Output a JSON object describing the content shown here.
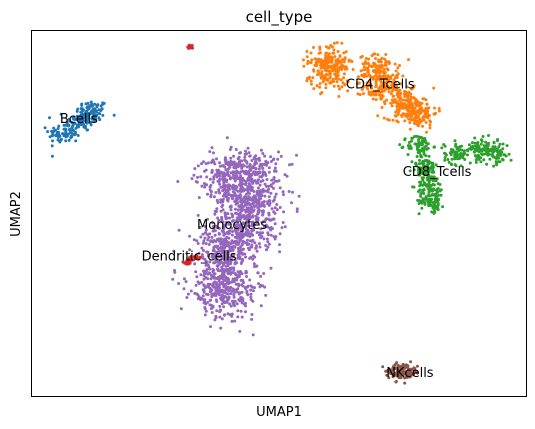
{
  "chart_data": {
    "type": "scatter",
    "title": "cell_type",
    "xlabel": "UMAP1",
    "ylabel": "UMAP2",
    "grid": false,
    "legend": "on data",
    "xlim": [
      0,
      100
    ],
    "ylim": [
      0,
      100
    ],
    "clusters": [
      {
        "name": "Bcells",
        "color": "#1f77b4",
        "label_at": [
          9.5,
          76.0
        ],
        "centers": [
          [
            12.2,
            78.0
          ],
          [
            10.0,
            75.5
          ],
          [
            6.6,
            72.0
          ]
        ],
        "spread": [
          1.6,
          1.5
        ],
        "count": 220
      },
      {
        "name": "CD4_Tcells",
        "color": "#ff7f0e",
        "label_at": [
          70.5,
          85.5
        ],
        "centers": [
          [
            60.0,
            92.0
          ],
          [
            60.3,
            87.8
          ],
          [
            70.2,
            89.5
          ],
          [
            71.0,
            84.5
          ],
          [
            75.5,
            80.0
          ],
          [
            78.0,
            77.5
          ]
        ],
        "spread": [
          2.0,
          2.0
        ],
        "count": 700
      },
      {
        "name": "CD8_Tcells",
        "color": "#2ca02c",
        "label_at": [
          82.0,
          61.5
        ],
        "centers": [
          [
            78.5,
            68.5
          ],
          [
            79.5,
            62.5
          ],
          [
            80.5,
            57.5
          ],
          [
            81.0,
            53.5
          ],
          [
            86.0,
            66.5
          ],
          [
            91.0,
            67.5
          ],
          [
            94.0,
            66.5
          ]
        ],
        "spread": [
          1.3,
          1.5
        ],
        "count": 500
      },
      {
        "name": "Monocytes",
        "color": "#9467bd",
        "label_at": [
          40.5,
          47.0
        ],
        "centers": [
          [
            44.0,
            55.0
          ],
          [
            40.0,
            59.5
          ],
          [
            43.5,
            62.5
          ],
          [
            44.0,
            49.5
          ],
          [
            41.0,
            44.0
          ],
          [
            39.5,
            39.0
          ],
          [
            38.5,
            32.0
          ],
          [
            39.0,
            27.0
          ]
        ],
        "spread": [
          3.5,
          3.0
        ],
        "count": 1500
      },
      {
        "name": "Dendritic_cells",
        "color": "#d62728",
        "label_at": [
          31.8,
          38.3
        ],
        "centers": [
          [
            32.2,
            37.3
          ],
          [
            31.2,
            36.5
          ],
          [
            33.3,
            38.0
          ],
          [
            31.9,
            95.5
          ]
        ],
        "spread": [
          0.5,
          0.3
        ],
        "count": 40
      },
      {
        "name": "NKcells",
        "color": "#8c564b",
        "label_at": [
          76.5,
          6.5
        ],
        "centers": [
          [
            76.2,
            6.7
          ],
          [
            75.0,
            5.9
          ],
          [
            74.0,
            7.0
          ]
        ],
        "spread": [
          1.2,
          0.9
        ],
        "count": 130
      }
    ]
  }
}
